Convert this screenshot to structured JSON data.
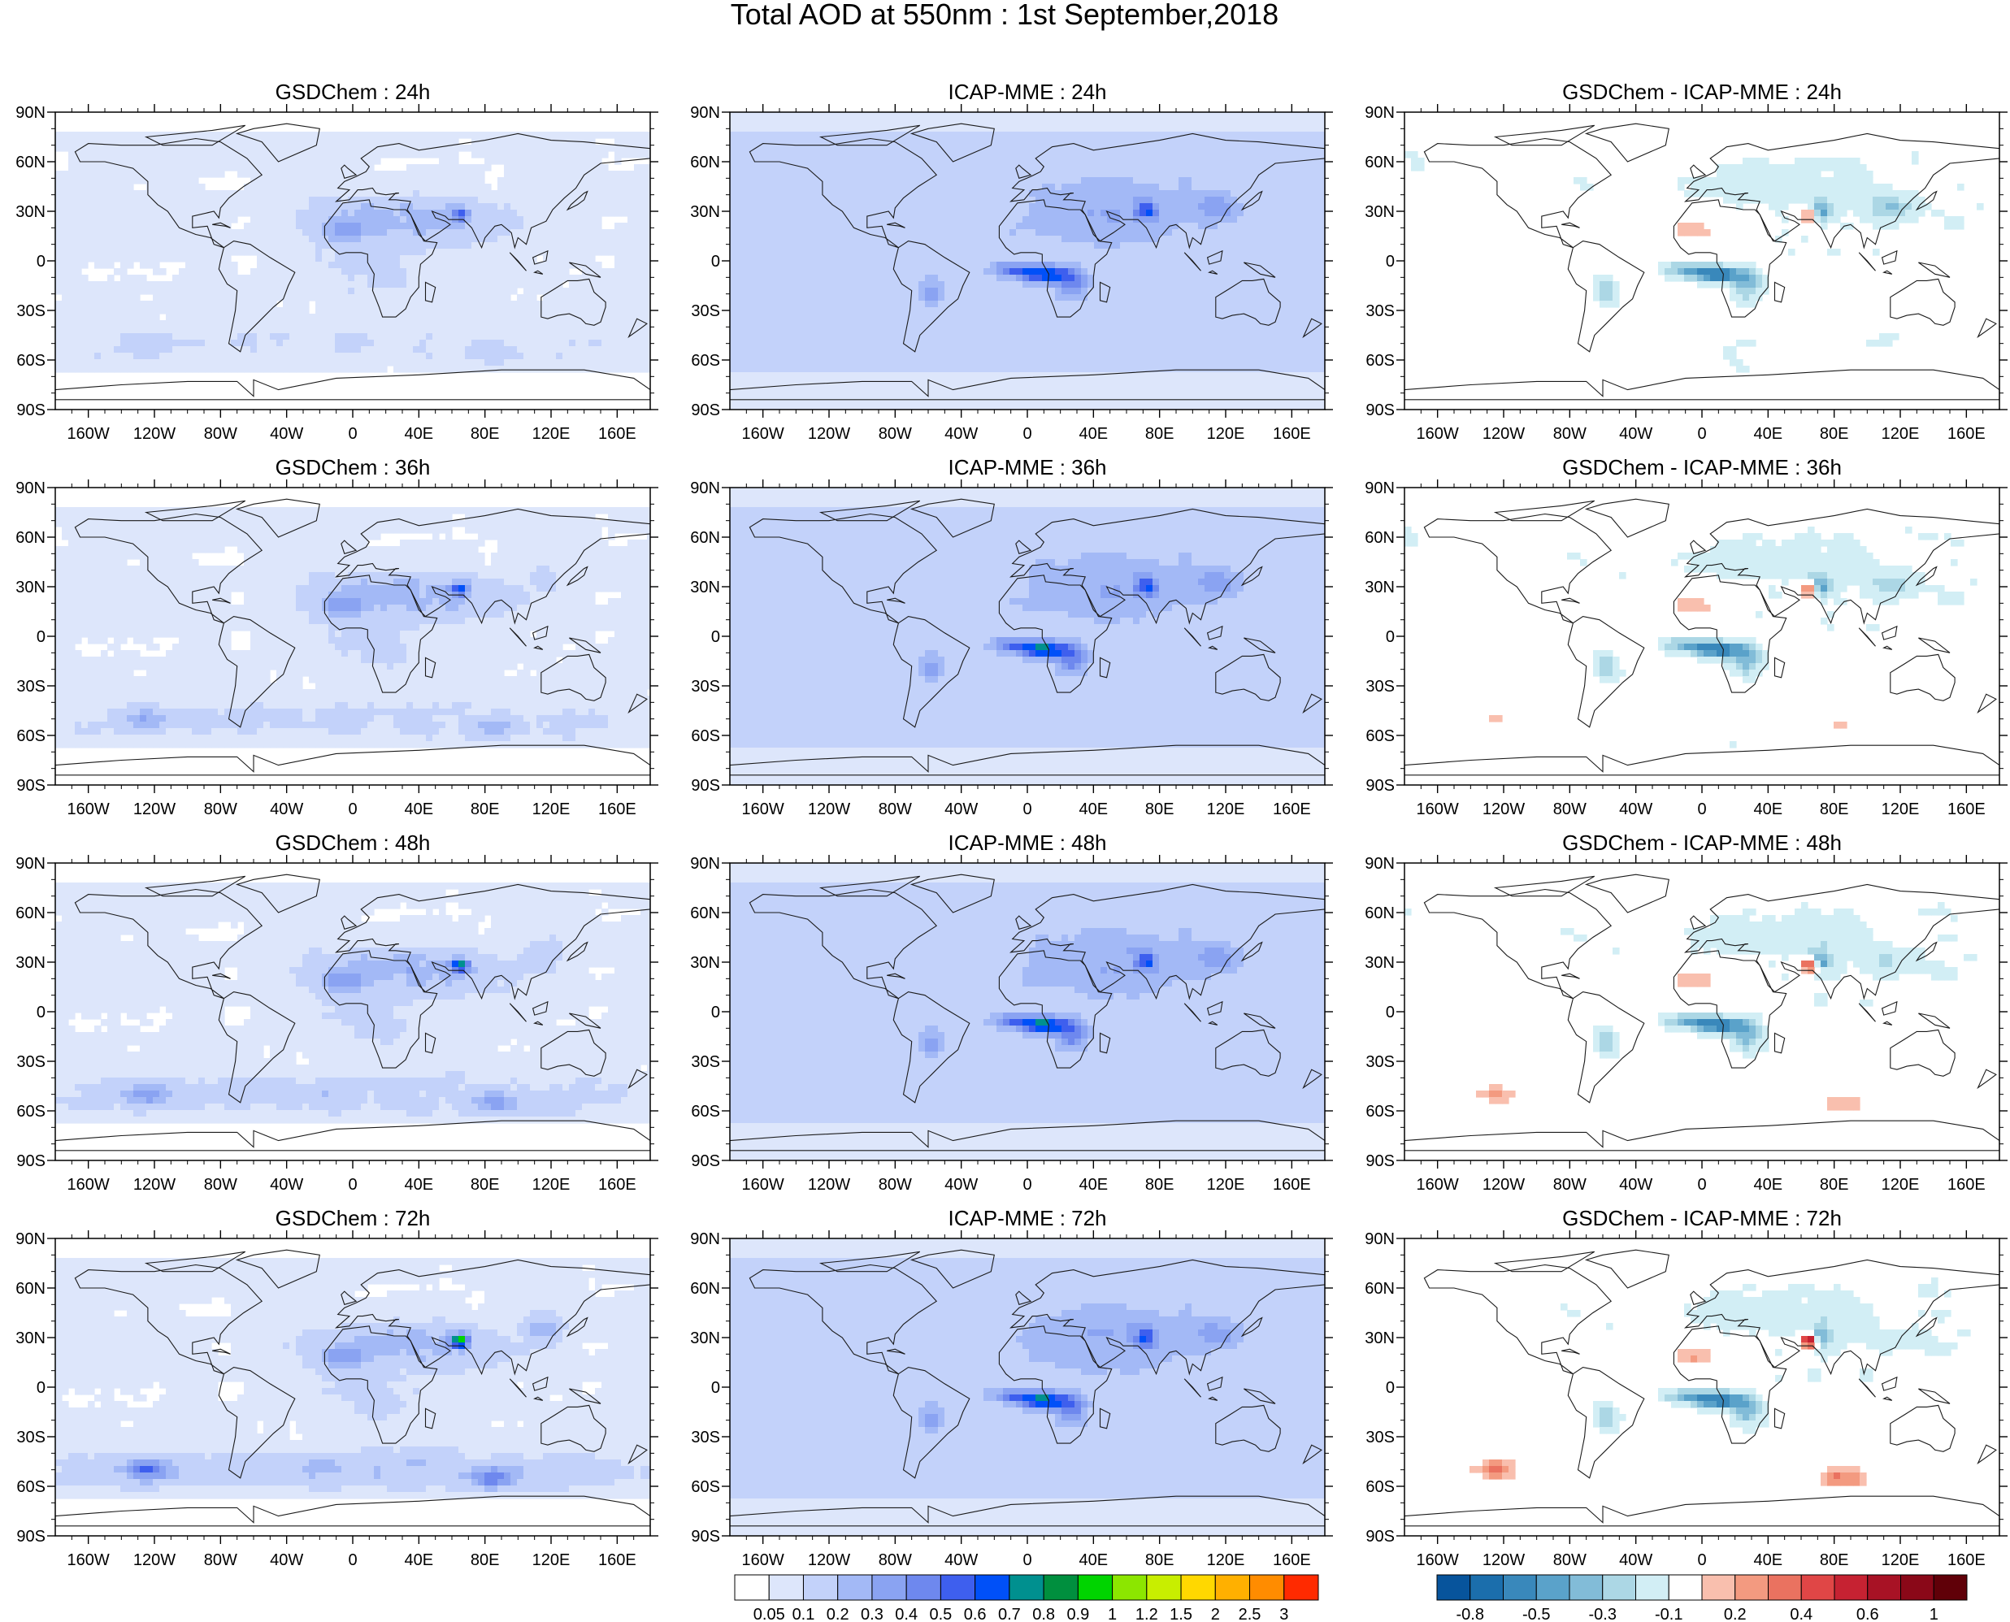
{
  "figure": {
    "title": "Total AOD at 550nm : 1st September,2018"
  },
  "axes": {
    "lat_ticks": [
      "90N",
      "60N",
      "30N",
      "0",
      "30S",
      "60S",
      "90S"
    ],
    "lon_ticks": [
      "160W",
      "120W",
      "80W",
      "40W",
      "0",
      "40E",
      "80E",
      "120E",
      "160E"
    ]
  },
  "panels": [
    {
      "title": "GSDChem : 24h",
      "field": "gsdchem",
      "lead_hours": 24
    },
    {
      "title": "ICAP-MME : 24h",
      "field": "icap",
      "lead_hours": 24
    },
    {
      "title": "GSDChem - ICAP-MME : 24h",
      "field": "diff",
      "lead_hours": 24
    },
    {
      "title": "GSDChem : 36h",
      "field": "gsdchem",
      "lead_hours": 36
    },
    {
      "title": "ICAP-MME : 36h",
      "field": "icap",
      "lead_hours": 36
    },
    {
      "title": "GSDChem - ICAP-MME : 36h",
      "field": "diff",
      "lead_hours": 36
    },
    {
      "title": "GSDChem : 48h",
      "field": "gsdchem",
      "lead_hours": 48
    },
    {
      "title": "ICAP-MME : 48h",
      "field": "icap",
      "lead_hours": 48
    },
    {
      "title": "GSDChem - ICAP-MME : 48h",
      "field": "diff",
      "lead_hours": 48
    },
    {
      "title": "GSDChem : 72h",
      "field": "gsdchem",
      "lead_hours": 72
    },
    {
      "title": "ICAP-MME : 72h",
      "field": "icap",
      "lead_hours": 72
    },
    {
      "title": "GSDChem - ICAP-MME : 72h",
      "field": "diff",
      "lead_hours": 72
    }
  ],
  "colorbars": {
    "aod": {
      "labels": [
        "0.05",
        "0.1",
        "0.2",
        "0.3",
        "0.4",
        "0.5",
        "0.6",
        "0.7",
        "0.8",
        "0.9",
        "1",
        "1.2",
        "1.5",
        "2",
        "2.5",
        "3"
      ],
      "colors": [
        "#ffffff",
        "#dde6fb",
        "#c3d2fa",
        "#a3b9f6",
        "#8aa3f2",
        "#6e88ee",
        "#3e5fee",
        "#0050f8",
        "#00908f",
        "#008f3e",
        "#00d400",
        "#8ce600",
        "#c8ee00",
        "#ffd800",
        "#ffb000",
        "#ff8c00",
        "#ff2a00"
      ]
    },
    "diff": {
      "labels": [
        "-0.8",
        "-0.5",
        "-0.3",
        "-0.1",
        "0.2",
        "0.4",
        "0.6",
        "1"
      ],
      "colors": [
        "#07549c",
        "#1b6eac",
        "#3988bb",
        "#5aa2ca",
        "#82bcd8",
        "#acd7e5",
        "#d2eef5",
        "#ffffff",
        "#f9bfae",
        "#f39a80",
        "#ea7260",
        "#e04646",
        "#c62232",
        "#a81225",
        "#8a0818",
        "#600008"
      ]
    }
  }
}
